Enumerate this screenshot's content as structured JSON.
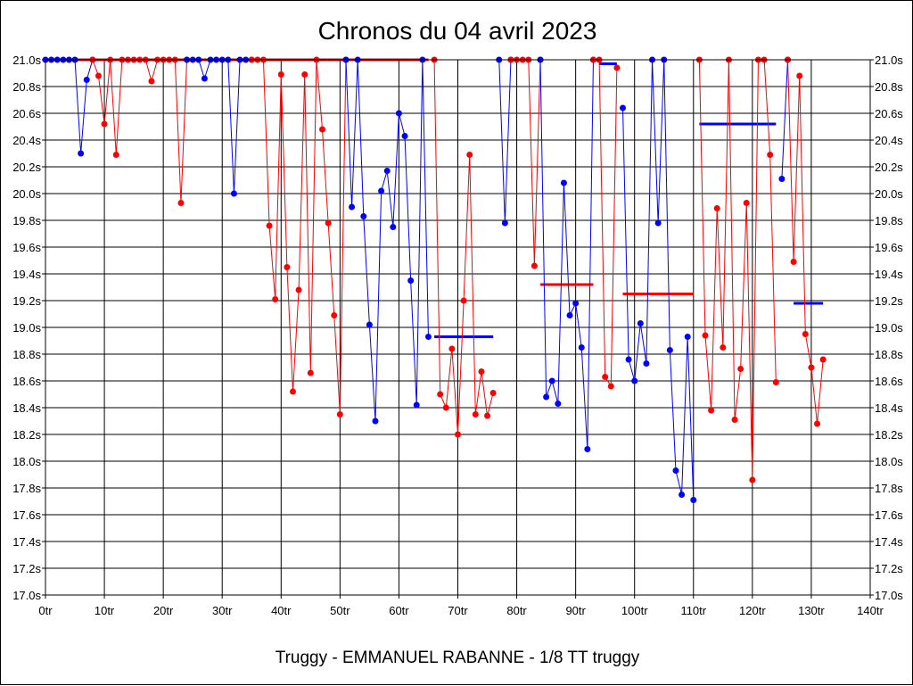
{
  "chart_data": {
    "type": "line",
    "title": "Chronos du 04 avril 2023",
    "subtitle": "Truggy - EMMANUEL RABANNE - 1/8 TT truggy",
    "x_ticks": [
      "0tr",
      "10tr",
      "20tr",
      "30tr",
      "40tr",
      "50tr",
      "60tr",
      "70tr",
      "80tr",
      "90tr",
      "100tr",
      "110tr",
      "120tr",
      "130tr",
      "140tr"
    ],
    "y_ticks": [
      "17.0s",
      "17.2s",
      "17.4s",
      "17.6s",
      "17.8s",
      "18.0s",
      "18.2s",
      "18.4s",
      "18.6s",
      "18.8s",
      "19.0s",
      "19.2s",
      "19.4s",
      "19.6s",
      "19.8s",
      "20.0s",
      "20.2s",
      "20.4s",
      "20.6s",
      "20.8s",
      "21.0s"
    ],
    "xlim": [
      0,
      140
    ],
    "ylim": [
      17.0,
      21.0
    ],
    "grid": true,
    "colors": {
      "blue": "#0000ff",
      "red": "#ff0000"
    },
    "series": [
      {
        "color": "blue",
        "points": [
          [
            0,
            21.0
          ],
          [
            1,
            21.0
          ],
          [
            2,
            21.0
          ],
          [
            3,
            21.0
          ],
          [
            4,
            21.0
          ],
          [
            5,
            21.0
          ],
          [
            6,
            20.3
          ],
          [
            7,
            20.85
          ],
          [
            8,
            21.0
          ]
        ]
      },
      {
        "color": "red",
        "points": [
          [
            8,
            21.0
          ],
          [
            9,
            20.88
          ],
          [
            10,
            20.52
          ],
          [
            11,
            21.0
          ],
          [
            12,
            20.29
          ],
          [
            13,
            21.0
          ],
          [
            14,
            21.0
          ],
          [
            15,
            21.0
          ],
          [
            16,
            21.0
          ],
          [
            17,
            21.0
          ],
          [
            18,
            20.84
          ],
          [
            19,
            21.0
          ],
          [
            20,
            21.0
          ],
          [
            21,
            21.0
          ],
          [
            22,
            21.0
          ],
          [
            23,
            19.93
          ],
          [
            24,
            21.0
          ]
        ]
      },
      {
        "color": "blue",
        "points": [
          [
            24,
            21.0
          ],
          [
            25,
            21.0
          ],
          [
            26,
            21.0
          ],
          [
            27,
            20.86
          ],
          [
            28,
            21.0
          ],
          [
            29,
            21.0
          ],
          [
            30,
            21.0
          ],
          [
            31,
            21.0
          ],
          [
            32,
            20.0
          ],
          [
            33,
            21.0
          ],
          [
            34,
            21.0
          ],
          [
            35,
            21.0
          ]
        ]
      },
      {
        "color": "red",
        "points": [
          [
            35,
            21.0
          ],
          [
            36,
            21.0
          ],
          [
            37,
            21.0
          ],
          [
            38,
            19.76
          ],
          [
            39,
            19.21
          ],
          [
            40,
            20.89
          ],
          [
            41,
            19.45
          ],
          [
            42,
            18.52
          ],
          [
            43,
            19.28
          ],
          [
            44,
            20.89
          ],
          [
            45,
            18.66
          ],
          [
            46,
            21.0
          ],
          [
            47,
            20.48
          ],
          [
            48,
            19.78
          ],
          [
            49,
            19.09
          ],
          [
            50,
            18.35
          ],
          [
            51,
            21.0
          ]
        ]
      },
      {
        "color": "blue",
        "points": [
          [
            51,
            21.0
          ],
          [
            52,
            19.9
          ],
          [
            53,
            21.0
          ],
          [
            54,
            19.83
          ],
          [
            55,
            19.02
          ],
          [
            56,
            18.3
          ],
          [
            57,
            20.02
          ],
          [
            58,
            20.17
          ],
          [
            59,
            19.75
          ],
          [
            60,
            20.6
          ],
          [
            61,
            20.43
          ],
          [
            62,
            19.35
          ],
          [
            63,
            18.42
          ],
          [
            64,
            21.0
          ],
          [
            65,
            18.93
          ]
        ]
      },
      {
        "color": "red",
        "points": [
          [
            66,
            21.0
          ],
          [
            67,
            18.5
          ],
          [
            68,
            18.4
          ],
          [
            69,
            18.84
          ],
          [
            70,
            18.2
          ],
          [
            71,
            19.2
          ],
          [
            72,
            20.29
          ],
          [
            73,
            18.35
          ],
          [
            74,
            18.67
          ],
          [
            75,
            18.34
          ],
          [
            76,
            18.51
          ]
        ]
      },
      {
        "color": "blue",
        "points": [
          [
            77,
            21.0
          ],
          [
            78,
            19.78
          ],
          [
            79,
            21.0
          ]
        ]
      },
      {
        "color": "red",
        "points": [
          [
            79,
            21.0
          ],
          [
            80,
            21.0
          ],
          [
            81,
            21.0
          ],
          [
            82,
            21.0
          ],
          [
            83,
            19.46
          ],
          [
            84,
            21.0
          ]
        ]
      },
      {
        "color": "blue",
        "points": [
          [
            84,
            21.0
          ],
          [
            85,
            18.48
          ],
          [
            86,
            18.6
          ],
          [
            87,
            18.43
          ],
          [
            88,
            20.08
          ],
          [
            89,
            19.09
          ],
          [
            90,
            19.18
          ],
          [
            91,
            18.85
          ],
          [
            92,
            18.09
          ],
          [
            93,
            21.0
          ]
        ]
      },
      {
        "color": "red",
        "points": [
          [
            93,
            21.0
          ],
          [
            94,
            21.0
          ],
          [
            95,
            18.63
          ],
          [
            96,
            18.56
          ],
          [
            97,
            20.94
          ]
        ]
      },
      {
        "color": "blue",
        "points": [
          [
            98,
            20.64
          ],
          [
            99,
            18.76
          ],
          [
            100,
            18.6
          ],
          [
            101,
            19.03
          ],
          [
            102,
            18.73
          ],
          [
            103,
            21.0
          ],
          [
            104,
            19.78
          ],
          [
            105,
            21.0
          ],
          [
            106,
            18.83
          ],
          [
            107,
            17.93
          ],
          [
            108,
            17.75
          ],
          [
            109,
            18.93
          ],
          [
            110,
            17.71
          ]
        ]
      },
      {
        "color": "red",
        "points": [
          [
            111,
            21.0
          ],
          [
            112,
            18.94
          ],
          [
            113,
            18.38
          ],
          [
            114,
            19.89
          ],
          [
            115,
            18.85
          ],
          [
            116,
            21.0
          ],
          [
            117,
            18.31
          ],
          [
            118,
            18.69
          ],
          [
            119,
            19.93
          ],
          [
            120,
            17.86
          ],
          [
            121,
            21.0
          ],
          [
            122,
            21.0
          ],
          [
            123,
            20.29
          ],
          [
            124,
            18.59
          ]
        ]
      },
      {
        "color": "blue",
        "points": [
          [
            125,
            20.11
          ],
          [
            126,
            21.0
          ]
        ]
      },
      {
        "color": "red",
        "points": [
          [
            126,
            21.0
          ],
          [
            127,
            19.49
          ],
          [
            128,
            20.88
          ],
          [
            129,
            18.95
          ],
          [
            130,
            18.7
          ],
          [
            131,
            18.28
          ],
          [
            132,
            18.76
          ]
        ]
      }
    ],
    "segments": [
      {
        "color": "blue",
        "x": [
          0,
          53
        ],
        "y": 21.0
      },
      {
        "color": "red",
        "x": [
          0,
          65
        ],
        "y": 21.0
      },
      {
        "color": "blue",
        "x": [
          66,
          76
        ],
        "y": 18.93
      },
      {
        "color": "red",
        "x": [
          84,
          93
        ],
        "y": 19.32
      },
      {
        "color": "blue",
        "x": [
          94,
          97
        ],
        "y": 20.97
      },
      {
        "color": "red",
        "x": [
          98,
          110
        ],
        "y": 19.25
      },
      {
        "color": "blue",
        "x": [
          111,
          124
        ],
        "y": 20.52
      },
      {
        "color": "blue",
        "x": [
          127,
          132
        ],
        "y": 19.18
      }
    ]
  }
}
